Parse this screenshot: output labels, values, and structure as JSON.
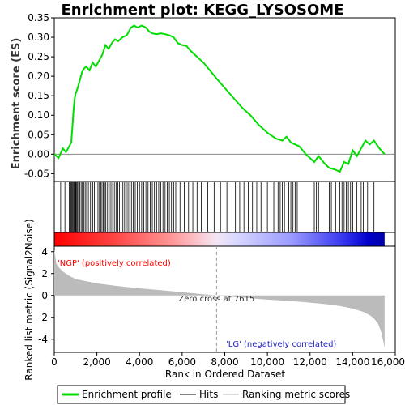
{
  "chart_data": {
    "type": "line",
    "title": "Enrichment plot: KEGG_LYSOSOME",
    "es_panel": {
      "ylabel": "Enrichment score (ES)",
      "ylim": [
        -0.07,
        0.35
      ],
      "yticks": [
        -0.05,
        0.0,
        0.05,
        0.1,
        0.15,
        0.2,
        0.25,
        0.3,
        0.35
      ],
      "ytick_labels": [
        "-0.05",
        "0.00",
        "0.05",
        "0.10",
        "0.15",
        "0.20",
        "0.25",
        "0.30",
        "0.35"
      ],
      "series": [
        {
          "name": "Enrichment profile",
          "color": "#00dd00",
          "x": [
            0,
            200,
            400,
            550,
            700,
            800,
            850,
            900,
            950,
            1000,
            1100,
            1200,
            1300,
            1400,
            1500,
            1650,
            1800,
            1950,
            2100,
            2250,
            2400,
            2550,
            2700,
            2850,
            3000,
            3200,
            3400,
            3600,
            3750,
            3900,
            4100,
            4300,
            4450,
            4600,
            4800,
            5000,
            5200,
            5400,
            5600,
            5800,
            6000,
            6200,
            6400,
            6700,
            7000,
            7300,
            7600,
            8000,
            8400,
            8800,
            9200,
            9600,
            10000,
            10400,
            10700,
            10900,
            11100,
            11500,
            11800,
            12200,
            12400,
            12700,
            12900,
            13200,
            13400,
            13600,
            13800,
            14000,
            14200,
            14400,
            14600,
            14800,
            15000,
            15250,
            15500
          ],
          "y": [
            0.0,
            -0.01,
            0.015,
            0.005,
            0.02,
            0.03,
            0.07,
            0.11,
            0.14,
            0.155,
            0.17,
            0.19,
            0.21,
            0.22,
            0.225,
            0.215,
            0.235,
            0.225,
            0.24,
            0.255,
            0.28,
            0.27,
            0.285,
            0.295,
            0.29,
            0.3,
            0.305,
            0.325,
            0.33,
            0.325,
            0.33,
            0.325,
            0.315,
            0.31,
            0.308,
            0.31,
            0.308,
            0.305,
            0.3,
            0.285,
            0.28,
            0.278,
            0.265,
            0.25,
            0.235,
            0.215,
            0.195,
            0.17,
            0.145,
            0.12,
            0.1,
            0.075,
            0.055,
            0.04,
            0.035,
            0.045,
            0.03,
            0.02,
            0.0,
            -0.02,
            -0.005,
            -0.025,
            -0.035,
            -0.04,
            -0.045,
            -0.02,
            -0.025,
            0.01,
            -0.005,
            0.015,
            0.035,
            0.025,
            0.035,
            0.015,
            0.0
          ]
        }
      ]
    },
    "hits_panel": {
      "series_name": "Hits",
      "hit_positions": [
        300,
        500,
        700,
        780,
        820,
        860,
        900,
        930,
        960,
        990,
        1020,
        1060,
        1100,
        1150,
        1200,
        1260,
        1320,
        1380,
        1450,
        1520,
        1600,
        1700,
        1800,
        1880,
        1960,
        2050,
        2120,
        2180,
        2240,
        2300,
        2360,
        2420,
        2500,
        2580,
        2660,
        2740,
        2820,
        2900,
        2980,
        3060,
        3140,
        3220,
        3300,
        3380,
        3460,
        3540,
        3620,
        3700,
        3800,
        3900,
        4000,
        4100,
        4200,
        4300,
        4400,
        4500,
        4600,
        4700,
        4800,
        4900,
        5000,
        5100,
        5200,
        5300,
        5400,
        5500,
        5600,
        5700,
        5900,
        6100,
        6300,
        6500,
        6700,
        6900,
        7200,
        7500,
        7800,
        8100,
        8500,
        8700,
        8900,
        9100,
        9300,
        9500,
        9700,
        10000,
        10300,
        10500,
        10600,
        10700,
        10800,
        11000,
        11100,
        11200,
        11300,
        11400,
        12200,
        12300,
        12400,
        12900,
        13000,
        13200,
        13400,
        13500,
        13600,
        13700,
        13800,
        13900,
        14000,
        14200,
        14400,
        14500,
        14700,
        15000
      ]
    },
    "metric_panel": {
      "ylabel": "Ranked list metric (Signal2Noise)",
      "ylim": [
        -5.2,
        4.5
      ],
      "yticks": [
        -4,
        -2,
        0,
        2,
        4
      ],
      "ytick_labels": [
        "-4",
        "-2",
        "0",
        "2",
        "4"
      ],
      "series_name": "Ranking metric scores",
      "x": [
        0,
        100,
        200,
        400,
        700,
        1000,
        1500,
        2000,
        3000,
        4000,
        5000,
        6000,
        7000,
        7615,
        8000,
        9000,
        10000,
        11000,
        12000,
        12500,
        13000,
        13500,
        14000,
        14500,
        14800,
        15000,
        15200,
        15350,
        15450,
        15500
      ],
      "y": [
        4.2,
        2.9,
        2.6,
        2.2,
        1.8,
        1.5,
        1.3,
        1.1,
        0.85,
        0.65,
        0.48,
        0.3,
        0.12,
        0.0,
        -0.08,
        -0.22,
        -0.38,
        -0.5,
        -0.65,
        -0.75,
        -0.85,
        -1.0,
        -1.2,
        -1.5,
        -1.8,
        -2.1,
        -2.6,
        -3.4,
        -4.3,
        -4.8
      ],
      "zero_cross": 7615,
      "zero_cross_label": "Zero cross at 7615",
      "pos_label": "'NGP' (positively correlated)",
      "neg_label": "'LG' (negatively correlated)"
    },
    "xlabel": "Rank in Ordered Dataset",
    "xlim": [
      0,
      16000
    ],
    "xticks": [
      0,
      2000,
      4000,
      6000,
      8000,
      10000,
      12000,
      14000,
      16000
    ],
    "xtick_labels": [
      "0",
      "2,000",
      "4,000",
      "6,000",
      "8,000",
      "10,000",
      "12,000",
      "14,000",
      "16,000"
    ],
    "n_genes": 15500,
    "legend": {
      "placement": "bottom",
      "entries": [
        "Enrichment profile",
        "Hits",
        "Ranking metric scores"
      ]
    },
    "colors": {
      "profile": "#00dd00",
      "hits": "#000000",
      "metric_fill": "#bbbbbb",
      "positive": "#ff0000",
      "negative": "#0000cc"
    }
  }
}
